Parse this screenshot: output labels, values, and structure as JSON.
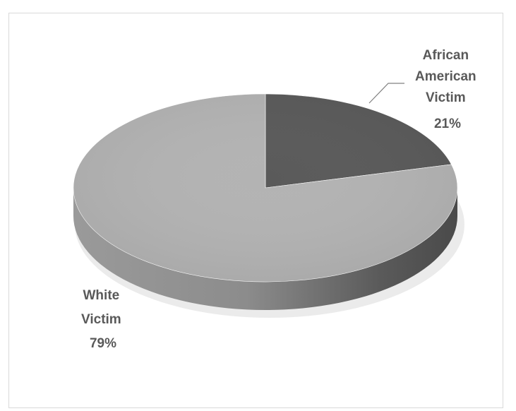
{
  "chart_data": {
    "type": "pie",
    "title": "",
    "slices": [
      {
        "label_lines": [
          "African",
          "American",
          "Victim"
        ],
        "pct_label": "21%",
        "value": 21,
        "color": "#5a5a5a"
      },
      {
        "label_lines": [
          "White",
          "Victim"
        ],
        "pct_label": "79%",
        "value": 79,
        "color": "#b3b3b3"
      }
    ],
    "legend": "none",
    "style": "3d-pie-with-data-labels"
  }
}
